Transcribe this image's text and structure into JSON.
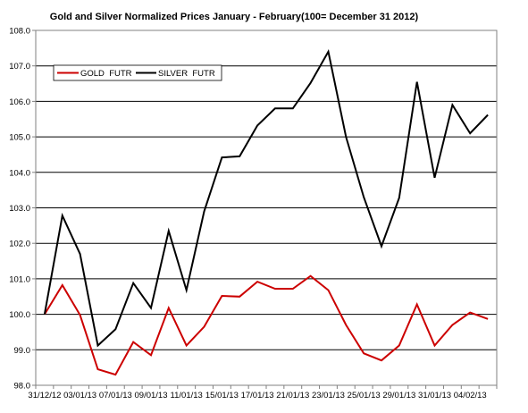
{
  "chart_data": {
    "type": "line",
    "title": "Gold and Silver Normalized Prices January - February(100= December 31 2012)",
    "xlabel": "",
    "ylabel": "",
    "ylim": [
      98.0,
      108.0
    ],
    "y_ticks": [
      "98.0",
      "99.0",
      "100.0",
      "101.0",
      "102.0",
      "103.0",
      "104.0",
      "105.0",
      "106.0",
      "107.0",
      "108.0"
    ],
    "x_tick_labels": [
      "31/12/12",
      "03/01/13",
      "07/01/13",
      "09/01/13",
      "11/01/13",
      "15/01/13",
      "17/01/13",
      "21/01/13",
      "23/01/13",
      "25/01/13",
      "29/01/13",
      "31/01/13",
      "04/02/13"
    ],
    "grid": "horizontal",
    "legend_position": "top-left",
    "series": [
      {
        "name": "GOLD  FUTR",
        "color": "#cc0000",
        "values": [
          100.0,
          100.82,
          99.98,
          98.45,
          98.3,
          99.22,
          98.85,
          100.18,
          99.12,
          99.65,
          100.52,
          100.5,
          100.92,
          100.72,
          100.72,
          101.08,
          100.68,
          99.7,
          98.9,
          98.7,
          99.12,
          100.28,
          99.12,
          99.7,
          100.05,
          99.87
        ]
      },
      {
        "name": "SILVER  FUTR",
        "color": "#000000",
        "values": [
          100.0,
          102.78,
          101.7,
          99.12,
          99.58,
          100.88,
          100.18,
          102.35,
          100.68,
          102.9,
          104.42,
          104.45,
          105.32,
          105.8,
          105.8,
          106.52,
          107.4,
          105.0,
          103.3,
          101.92,
          103.28,
          106.55,
          103.85,
          105.9,
          105.1,
          105.62
        ]
      }
    ]
  }
}
